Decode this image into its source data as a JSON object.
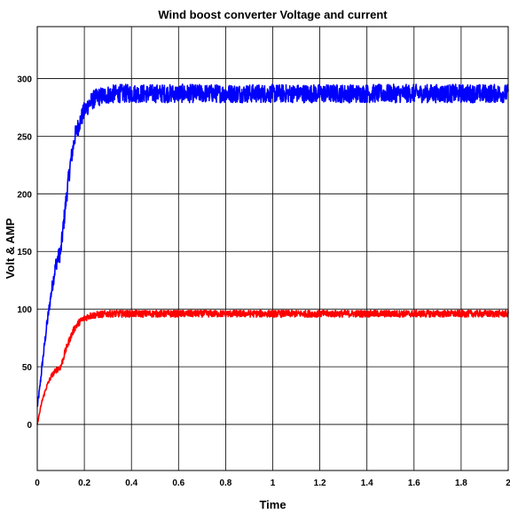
{
  "chart_data": {
    "type": "line",
    "title": "Wind boost converter Voltage and current",
    "xlabel": "Time",
    "ylabel": "Volt  & AMP",
    "xlim": [
      0,
      2
    ],
    "ylim": [
      -40,
      345
    ],
    "xticks": [
      0,
      0.2,
      0.4,
      0.6,
      0.8,
      1,
      1.2,
      1.4,
      1.6,
      1.8,
      2
    ],
    "xtick_labels": [
      "0",
      "0.2",
      "0.4",
      "0.6",
      "0.8",
      "1",
      "1.2",
      "1.4",
      "1.6",
      "1.8",
      "2"
    ],
    "yticks": [
      0,
      50,
      100,
      150,
      200,
      250,
      300
    ],
    "ytick_labels": [
      "0",
      "50",
      "100",
      "150",
      "200",
      "250",
      "300"
    ],
    "grid": true,
    "legend": "none",
    "series": [
      {
        "color": "#0000ff",
        "x": [
          0,
          0.01,
          0.02,
          0.04,
          0.06,
          0.08,
          0.1,
          0.12,
          0.14,
          0.16,
          0.18,
          0.2,
          0.22,
          0.24,
          0.26,
          0.3,
          0.35,
          0.4,
          0.5,
          0.6,
          0.8,
          1.0,
          1.2,
          1.4,
          1.6,
          1.8,
          2.0
        ],
        "y": [
          15,
          30,
          50,
          85,
          115,
          140,
          150,
          190,
          225,
          250,
          262,
          272,
          278,
          282,
          284,
          286,
          287,
          287,
          287,
          287,
          287,
          287,
          287,
          287,
          287,
          287,
          287
        ],
        "noise": 8
      },
      {
        "color": "#ff0000",
        "x": [
          0,
          0.01,
          0.02,
          0.04,
          0.06,
          0.08,
          0.1,
          0.12,
          0.14,
          0.16,
          0.18,
          0.2,
          0.22,
          0.25,
          0.3,
          0.35,
          0.4,
          0.6,
          0.8,
          1.0,
          1.2,
          1.4,
          1.6,
          1.8,
          2.0
        ],
        "y": [
          0,
          10,
          20,
          33,
          42,
          47,
          50,
          64,
          75,
          84,
          89,
          92,
          94,
          95,
          96,
          96,
          96,
          96,
          96,
          96,
          96,
          96,
          96,
          96,
          96
        ],
        "noise": 3
      }
    ]
  }
}
